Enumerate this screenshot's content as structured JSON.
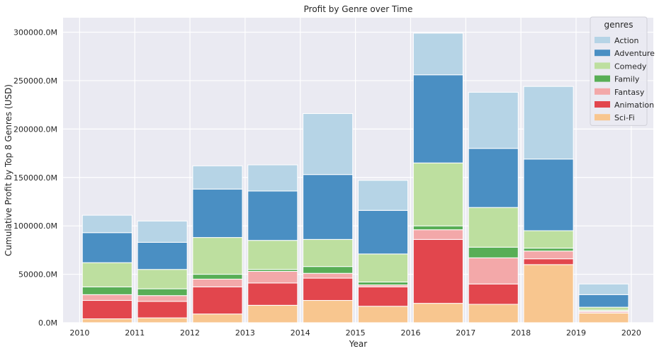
{
  "chart_data": {
    "type": "bar",
    "stacked": true,
    "title": "Profit by Genre over Time",
    "xlabel": "Year",
    "ylabel": "Cumulative Profit by Top 8 Genres (USD)",
    "xlim": [
      2009.7,
      2020.4
    ],
    "ylim": [
      0,
      315000
    ],
    "x_ticks": [
      2010,
      2011,
      2012,
      2013,
      2014,
      2015,
      2016,
      2017,
      2018,
      2019,
      2020
    ],
    "y_ticks": [
      0,
      50000,
      100000,
      150000,
      200000,
      250000,
      300000
    ],
    "y_tick_labels": [
      "0.0M",
      "50000.0M",
      "100000.0M",
      "150000.0M",
      "200000.0M",
      "250000.0M",
      "300000.0M"
    ],
    "grid": true,
    "bar_width": 0.9,
    "categories": [
      2010.5,
      2011.5,
      2012.5,
      2013.5,
      2014.5,
      2015.5,
      2016.5,
      2017.5,
      2018.5,
      2019.5
    ],
    "legend": {
      "title": "genres",
      "placement": "top-right"
    },
    "series": [
      {
        "name": "Sci-Fi",
        "color": "#f8c68f",
        "values": [
          4000,
          5000,
          9000,
          18000,
          23000,
          17000,
          20000,
          19000,
          60000,
          10000
        ]
      },
      {
        "name": "Animation",
        "color": "#e2464d",
        "values": [
          19000,
          17000,
          28000,
          23000,
          23000,
          20000,
          66000,
          21000,
          6000,
          1000
        ]
      },
      {
        "name": "Fantasy",
        "color": "#f3a8a9",
        "values": [
          6000,
          6000,
          8000,
          12000,
          5000,
          2000,
          10000,
          27000,
          8000,
          1000
        ]
      },
      {
        "name": "Family",
        "color": "#58ae56",
        "values": [
          8000,
          7000,
          5000,
          2000,
          7000,
          3000,
          4000,
          11000,
          3000,
          1000
        ]
      },
      {
        "name": "Comedy",
        "color": "#bddf9f",
        "values": [
          25000,
          20000,
          38000,
          30000,
          28000,
          29000,
          65000,
          41000,
          18000,
          3000
        ]
      },
      {
        "name": "Adventure",
        "color": "#4a8fc3",
        "values": [
          31000,
          28000,
          50000,
          51000,
          67000,
          45000,
          91000,
          61000,
          74000,
          13000
        ]
      },
      {
        "name": "Action",
        "color": "#b6d4e6",
        "values": [
          18000,
          22000,
          24000,
          27000,
          63000,
          31000,
          43000,
          58000,
          75000,
          11000
        ]
      }
    ],
    "legend_order": [
      "Action",
      "Adventure",
      "Comedy",
      "Family",
      "Fantasy",
      "Animation",
      "Sci-Fi"
    ]
  },
  "style": {
    "plot_background": "#eaeaf2",
    "grid_color": "#ffffff",
    "bar_edge_color": "#ffffff"
  }
}
